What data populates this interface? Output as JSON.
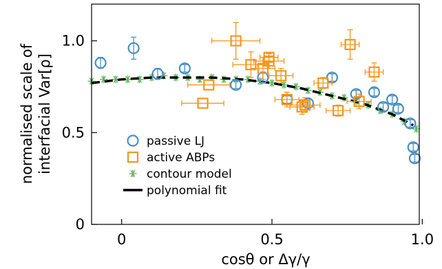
{
  "chart_data": {
    "type": "scatter",
    "xlabel": "cosθ or Δγ/γ",
    "ylabel_lines": [
      "normalised scale of",
      "interfacial Var[ρ]"
    ],
    "xlim": [
      -0.1,
      0.99
    ],
    "ylim": [
      0,
      1.2
    ],
    "x_ticks": [
      0,
      0.5,
      1.0
    ],
    "x_tick_labels": [
      "0",
      "0.5",
      "1.0"
    ],
    "y_ticks": [
      0,
      0.5,
      1.0
    ],
    "y_tick_labels": [
      "0",
      "0.5",
      "1.0"
    ],
    "grid": false,
    "legend_position": "lower-left",
    "colors": {
      "passive": "#4a90c4",
      "active": "#f5961e",
      "contour": "#5cb85c",
      "fit": "#000000"
    },
    "series": [
      {
        "name": "passive LJ",
        "marker": "circle",
        "points": [
          {
            "x": -0.07,
            "y": 0.88,
            "xerr": 0.0,
            "yerr": 0.03
          },
          {
            "x": 0.04,
            "y": 0.96,
            "xerr": 0.0,
            "yerr": 0.06
          },
          {
            "x": 0.12,
            "y": 0.82,
            "xerr": 0.0,
            "yerr": 0.03
          },
          {
            "x": 0.21,
            "y": 0.85,
            "xerr": 0.0,
            "yerr": 0.02
          },
          {
            "x": 0.38,
            "y": 0.76,
            "xerr": 0.0,
            "yerr": 0.02
          },
          {
            "x": 0.47,
            "y": 0.8,
            "xerr": 0.0,
            "yerr": 0.03
          },
          {
            "x": 0.55,
            "y": 0.68,
            "xerr": 0.0,
            "yerr": 0.02
          },
          {
            "x": 0.62,
            "y": 0.66,
            "xerr": 0.0,
            "yerr": 0.02
          },
          {
            "x": 0.7,
            "y": 0.8,
            "xerr": 0.0,
            "yerr": 0.02
          },
          {
            "x": 0.78,
            "y": 0.71,
            "xerr": 0.0,
            "yerr": 0.02
          },
          {
            "x": 0.84,
            "y": 0.72,
            "xerr": 0.0,
            "yerr": 0.02
          },
          {
            "x": 0.87,
            "y": 0.64,
            "xerr": 0.0,
            "yerr": 0.02
          },
          {
            "x": 0.9,
            "y": 0.68,
            "xerr": 0.0,
            "yerr": 0.02
          },
          {
            "x": 0.92,
            "y": 0.63,
            "xerr": 0.0,
            "yerr": 0.02
          },
          {
            "x": 0.96,
            "y": 0.55,
            "xerr": 0.0,
            "yerr": 0.02
          },
          {
            "x": 0.97,
            "y": 0.42,
            "xerr": 0.0,
            "yerr": 0.02
          },
          {
            "x": 0.975,
            "y": 0.36,
            "xerr": 0.0,
            "yerr": 0.02
          }
        ]
      },
      {
        "name": "active ABPs",
        "marker": "square",
        "points": [
          {
            "x": 0.27,
            "y": 0.66,
            "xerr": 0.07,
            "yerr": 0.0
          },
          {
            "x": 0.29,
            "y": 0.76,
            "xerr": 0.07,
            "yerr": 0.0
          },
          {
            "x": 0.38,
            "y": 1.0,
            "xerr": 0.08,
            "yerr": 0.1
          },
          {
            "x": 0.43,
            "y": 0.87,
            "xerr": 0.06,
            "yerr": 0.07
          },
          {
            "x": 0.47,
            "y": 0.85,
            "xerr": 0.04,
            "yerr": 0.06
          },
          {
            "x": 0.49,
            "y": 0.89,
            "xerr": 0.05,
            "yerr": 0.04
          },
          {
            "x": 0.49,
            "y": 0.91,
            "xerr": 0.03,
            "yerr": 0.02
          },
          {
            "x": 0.53,
            "y": 0.81,
            "xerr": 0.04,
            "yerr": 0.04
          },
          {
            "x": 0.55,
            "y": 0.68,
            "xerr": 0.04,
            "yerr": 0.04
          },
          {
            "x": 0.6,
            "y": 0.64,
            "xerr": 0.04,
            "yerr": 0.04
          },
          {
            "x": 0.61,
            "y": 0.65,
            "xerr": 0.05,
            "yerr": 0.04
          },
          {
            "x": 0.67,
            "y": 0.77,
            "xerr": 0.03,
            "yerr": 0.03
          },
          {
            "x": 0.72,
            "y": 0.62,
            "xerr": 0.04,
            "yerr": 0.03
          },
          {
            "x": 0.76,
            "y": 0.98,
            "xerr": 0.03,
            "yerr": 0.08
          },
          {
            "x": 0.79,
            "y": 0.67,
            "xerr": 0.04,
            "yerr": 0.04
          },
          {
            "x": 0.84,
            "y": 0.83,
            "xerr": 0.03,
            "yerr": 0.05
          }
        ]
      },
      {
        "name": "contour model",
        "marker": "asterisk",
        "points": [
          {
            "x": -0.1,
            "y": 0.78
          },
          {
            "x": -0.06,
            "y": 0.79
          },
          {
            "x": -0.02,
            "y": 0.79
          },
          {
            "x": 0.02,
            "y": 0.79
          },
          {
            "x": 0.06,
            "y": 0.79
          },
          {
            "x": 0.1,
            "y": 0.8
          },
          {
            "x": 0.14,
            "y": 0.81
          },
          {
            "x": 0.18,
            "y": 0.8
          },
          {
            "x": 0.22,
            "y": 0.8
          },
          {
            "x": 0.26,
            "y": 0.79
          },
          {
            "x": 0.3,
            "y": 0.8
          },
          {
            "x": 0.34,
            "y": 0.79
          },
          {
            "x": 0.38,
            "y": 0.79
          },
          {
            "x": 0.42,
            "y": 0.79
          },
          {
            "x": 0.46,
            "y": 0.78
          },
          {
            "x": 0.5,
            "y": 0.77
          },
          {
            "x": 0.54,
            "y": 0.76
          },
          {
            "x": 0.58,
            "y": 0.75
          },
          {
            "x": 0.62,
            "y": 0.73
          },
          {
            "x": 0.66,
            "y": 0.72
          },
          {
            "x": 0.7,
            "y": 0.7
          },
          {
            "x": 0.74,
            "y": 0.69
          },
          {
            "x": 0.78,
            "y": 0.67
          },
          {
            "x": 0.82,
            "y": 0.65
          },
          {
            "x": 0.86,
            "y": 0.62
          },
          {
            "x": 0.9,
            "y": 0.6
          },
          {
            "x": 0.94,
            "y": 0.56
          },
          {
            "x": 0.98,
            "y": 0.52
          }
        ]
      },
      {
        "name": "polynomial fit",
        "marker": "dashed-line",
        "points": [
          {
            "x": -0.1,
            "y": 0.77
          },
          {
            "x": 0.0,
            "y": 0.79
          },
          {
            "x": 0.1,
            "y": 0.8
          },
          {
            "x": 0.2,
            "y": 0.8
          },
          {
            "x": 0.3,
            "y": 0.8
          },
          {
            "x": 0.4,
            "y": 0.79
          },
          {
            "x": 0.5,
            "y": 0.77
          },
          {
            "x": 0.6,
            "y": 0.74
          },
          {
            "x": 0.7,
            "y": 0.7
          },
          {
            "x": 0.8,
            "y": 0.66
          },
          {
            "x": 0.9,
            "y": 0.6
          },
          {
            "x": 0.97,
            "y": 0.54
          }
        ]
      }
    ]
  }
}
